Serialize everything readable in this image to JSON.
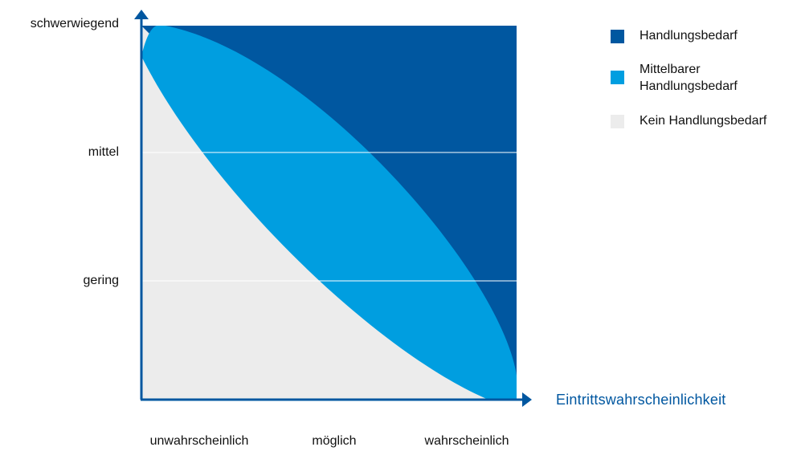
{
  "chart_data": {
    "type": "area",
    "title": "",
    "xlabel": "Eintrittswahrscheinlichkeit",
    "ylabel": "",
    "x_categories": [
      "unwahrscheinlich",
      "möglich",
      "wahrscheinlich"
    ],
    "y_categories": [
      "gering",
      "mittel",
      "schwerwiegend"
    ],
    "grid": true,
    "legend_position": "top-right",
    "series": [
      {
        "name": "Handlungsbedarf",
        "color": "#0057a0"
      },
      {
        "name": "Mittelbarer Handlungsbedarf",
        "color": "#009ee0"
      },
      {
        "name": "Kein Handlungsbedarf",
        "color": "#ececec"
      }
    ]
  },
  "colors": {
    "axis": "#0057a0",
    "gridline": "#ffffff",
    "text": "#111111"
  }
}
